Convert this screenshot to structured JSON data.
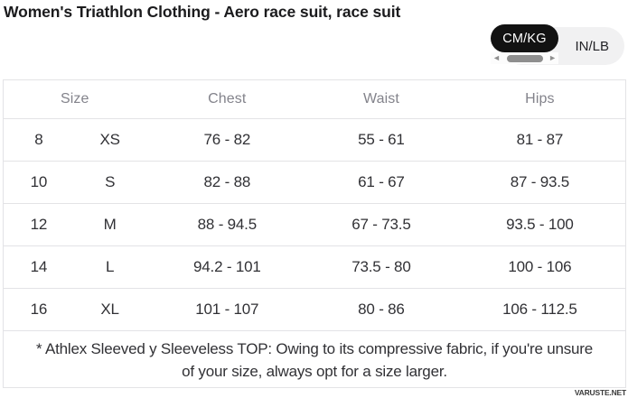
{
  "page": {
    "title": "Women's Triathlon Clothing - Aero race suit, race suit",
    "watermark": "VARUSTE.NET"
  },
  "unit_toggle": {
    "selected": "CM/KG",
    "cmkg_label": "CM/KG",
    "inlb_label": "IN/LB"
  },
  "icons": {
    "scroll_left_arrow": "◄",
    "scroll_right_arrow": "►"
  },
  "table": {
    "headers": {
      "size": "Size",
      "chest": "Chest",
      "waist": "Waist",
      "hips": "Hips"
    },
    "rows": [
      {
        "size_num": "8",
        "size_letter": "XS",
        "chest": "76 - 82",
        "waist": "55 - 61",
        "hips": "81 - 87"
      },
      {
        "size_num": "10",
        "size_letter": "S",
        "chest": "82 - 88",
        "waist": "61 - 67",
        "hips": "87 - 93.5"
      },
      {
        "size_num": "12",
        "size_letter": "M",
        "chest": "88 - 94.5",
        "waist": "67 - 73.5",
        "hips": "93.5 - 100"
      },
      {
        "size_num": "14",
        "size_letter": "L",
        "chest": "94.2 - 101",
        "waist": "73.5 - 80",
        "hips": "100 - 106"
      },
      {
        "size_num": "16",
        "size_letter": "XL",
        "chest": "101 - 107",
        "waist": "80 - 86",
        "hips": "106 - 112.5"
      }
    ],
    "note_lines": [
      "* Athlex Sleeved y Sleeveless TOP: Owing to its compressive fabric, if you're unsure",
      "of your size, always opt for a size larger."
    ]
  },
  "colors": {
    "title_text": "#1b1b1d",
    "toggle_selected_bg": "#121212",
    "toggle_selected_text": "#ffffff",
    "toggle_bg": "#f1f1f2",
    "scrollbar": "#8f8f8f",
    "border": "#e3e3e6",
    "header_text": "#83838b",
    "cell_text": "#313135",
    "watermark": "#3a3a3a"
  }
}
